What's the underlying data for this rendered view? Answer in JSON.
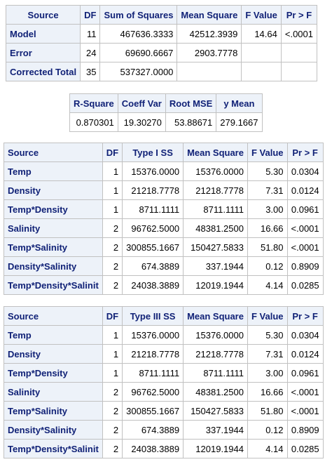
{
  "anova": {
    "headers": [
      "Source",
      "DF",
      "Sum of Squares",
      "Mean Square",
      "F Value",
      "Pr > F"
    ],
    "rows": [
      {
        "source": "Model",
        "df": "11",
        "ss": "467636.3333",
        "ms": "42512.3939",
        "f": "14.64",
        "p": "<.0001"
      },
      {
        "source": "Error",
        "df": "24",
        "ss": "69690.6667",
        "ms": "2903.7778",
        "f": "",
        "p": ""
      },
      {
        "source": "Corrected Total",
        "df": "35",
        "ss": "537327.0000",
        "ms": "",
        "f": "",
        "p": ""
      }
    ]
  },
  "fit": {
    "headers": [
      "R-Square",
      "Coeff Var",
      "Root MSE",
      "y Mean"
    ],
    "values": [
      "0.870301",
      "19.30270",
      "53.88671",
      "279.1667"
    ]
  },
  "type1": {
    "headers": [
      "Source",
      "DF",
      "Type I SS",
      "Mean Square",
      "F Value",
      "Pr > F"
    ],
    "rows": [
      {
        "source": "Temp",
        "df": "1",
        "ss": "15376.0000",
        "ms": "15376.0000",
        "f": "5.30",
        "p": "0.0304"
      },
      {
        "source": "Density",
        "df": "1",
        "ss": "21218.7778",
        "ms": "21218.7778",
        "f": "7.31",
        "p": "0.0124"
      },
      {
        "source": "Temp*Density",
        "df": "1",
        "ss": "8711.1111",
        "ms": "8711.1111",
        "f": "3.00",
        "p": "0.0961"
      },
      {
        "source": "Salinity",
        "df": "2",
        "ss": "96762.5000",
        "ms": "48381.2500",
        "f": "16.66",
        "p": "<.0001"
      },
      {
        "source": "Temp*Salinity",
        "df": "2",
        "ss": "300855.1667",
        "ms": "150427.5833",
        "f": "51.80",
        "p": "<.0001"
      },
      {
        "source": "Density*Salinity",
        "df": "2",
        "ss": "674.3889",
        "ms": "337.1944",
        "f": "0.12",
        "p": "0.8909"
      },
      {
        "source": "Temp*Density*Salinit",
        "df": "2",
        "ss": "24038.3889",
        "ms": "12019.1944",
        "f": "4.14",
        "p": "0.0285"
      }
    ]
  },
  "type3": {
    "headers": [
      "Source",
      "DF",
      "Type III SS",
      "Mean Square",
      "F Value",
      "Pr > F"
    ],
    "rows": [
      {
        "source": "Temp",
        "df": "1",
        "ss": "15376.0000",
        "ms": "15376.0000",
        "f": "5.30",
        "p": "0.0304"
      },
      {
        "source": "Density",
        "df": "1",
        "ss": "21218.7778",
        "ms": "21218.7778",
        "f": "7.31",
        "p": "0.0124"
      },
      {
        "source": "Temp*Density",
        "df": "1",
        "ss": "8711.1111",
        "ms": "8711.1111",
        "f": "3.00",
        "p": "0.0961"
      },
      {
        "source": "Salinity",
        "df": "2",
        "ss": "96762.5000",
        "ms": "48381.2500",
        "f": "16.66",
        "p": "<.0001"
      },
      {
        "source": "Temp*Salinity",
        "df": "2",
        "ss": "300855.1667",
        "ms": "150427.5833",
        "f": "51.80",
        "p": "<.0001"
      },
      {
        "source": "Density*Salinity",
        "df": "2",
        "ss": "674.3889",
        "ms": "337.1944",
        "f": "0.12",
        "p": "0.8909"
      },
      {
        "source": "Temp*Density*Salinit",
        "df": "2",
        "ss": "24038.3889",
        "ms": "12019.1944",
        "f": "4.14",
        "p": "0.0285"
      }
    ]
  },
  "colors": {
    "header_bg": "#edf2f9",
    "header_text": "#112277",
    "border": "#c1c1c1"
  }
}
